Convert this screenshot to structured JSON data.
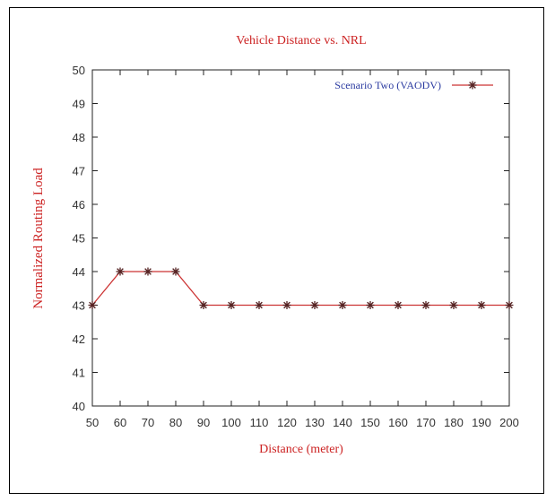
{
  "chart_data": {
    "type": "line",
    "title": "Vehicle Distance vs. NRL",
    "xlabel": "Distance (meter)",
    "ylabel": "Normalized Routing Load",
    "x": [
      50,
      60,
      70,
      80,
      90,
      100,
      110,
      120,
      130,
      140,
      150,
      160,
      170,
      180,
      190,
      200
    ],
    "xlim": [
      50,
      200
    ],
    "ylim": [
      40,
      50
    ],
    "x_ticks": [
      "50",
      "60",
      "70",
      "80",
      "90",
      "100",
      "110",
      "120",
      "130",
      "140",
      "150",
      "160",
      "170",
      "180",
      "190",
      "200"
    ],
    "y_ticks": [
      "40",
      "41",
      "42",
      "43",
      "44",
      "45",
      "46",
      "47",
      "48",
      "49",
      "50"
    ],
    "grid": false,
    "legend_position": "top-right",
    "series": [
      {
        "name": "Scenario Two (VAODV)",
        "values": [
          43,
          44,
          44,
          44,
          43,
          43,
          43,
          43,
          43,
          43,
          43,
          43,
          43,
          43,
          43,
          43
        ],
        "marker": "asterisk"
      }
    ],
    "colors": {
      "title": "#cc2222",
      "axis_label": "#cc2222",
      "legend_text": "#2a3aa0",
      "series_line": "#cc3333",
      "marker": "#552222"
    }
  }
}
